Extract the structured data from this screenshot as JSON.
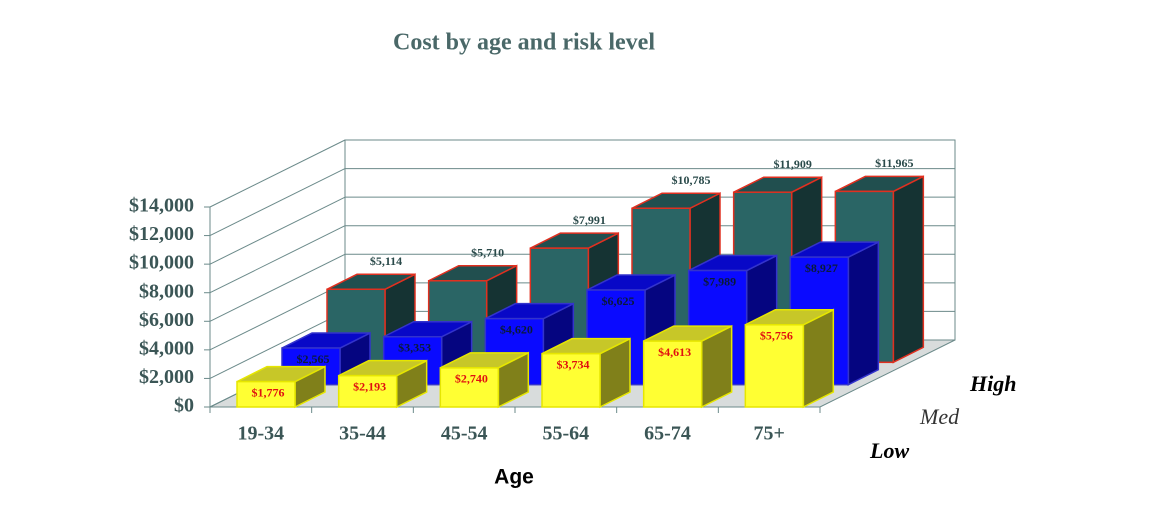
{
  "chart_data": {
    "type": "bar3d",
    "title": "Cost by age and risk level",
    "x_label": "Age",
    "categories": [
      "19-34",
      "35-44",
      "45-54",
      "55-64",
      "65-74",
      "75+"
    ],
    "series": [
      {
        "name": "Low",
        "color": "#ffff33",
        "values": [
          1776,
          2193,
          2740,
          3734,
          4613,
          5756
        ],
        "value_labels": [
          "$1,776",
          "$2,193",
          "$2,740",
          "$3,734",
          "$4,613",
          "$5,756"
        ]
      },
      {
        "name": "Med",
        "color": "#0a0aff",
        "values": [
          2565,
          3353,
          4620,
          6625,
          7989,
          8927
        ],
        "value_labels": [
          "$2,565",
          "$3,353",
          "$4,620",
          "$6,625",
          "$7,989",
          "$8,927"
        ]
      },
      {
        "name": "High",
        "color": "#2a6565",
        "values": [
          5114,
          5710,
          7991,
          10785,
          11909,
          11965
        ],
        "value_labels": [
          "$5,114",
          "$5,710",
          "$7,991",
          "$10,785",
          "$11,909",
          "$11,965"
        ]
      }
    ],
    "ylim": [
      0,
      14000
    ],
    "yticks": [
      {
        "value": 0,
        "label": "$0"
      },
      {
        "value": 2000,
        "label": "$2,000"
      },
      {
        "value": 4000,
        "label": "$4,000"
      },
      {
        "value": 6000,
        "label": "$6,000"
      },
      {
        "value": 8000,
        "label": "$8,000"
      },
      {
        "value": 10000,
        "label": "$10,000"
      },
      {
        "value": 12000,
        "label": "$12,000"
      },
      {
        "value": 14000,
        "label": "$14,000"
      }
    ],
    "grid": true
  }
}
